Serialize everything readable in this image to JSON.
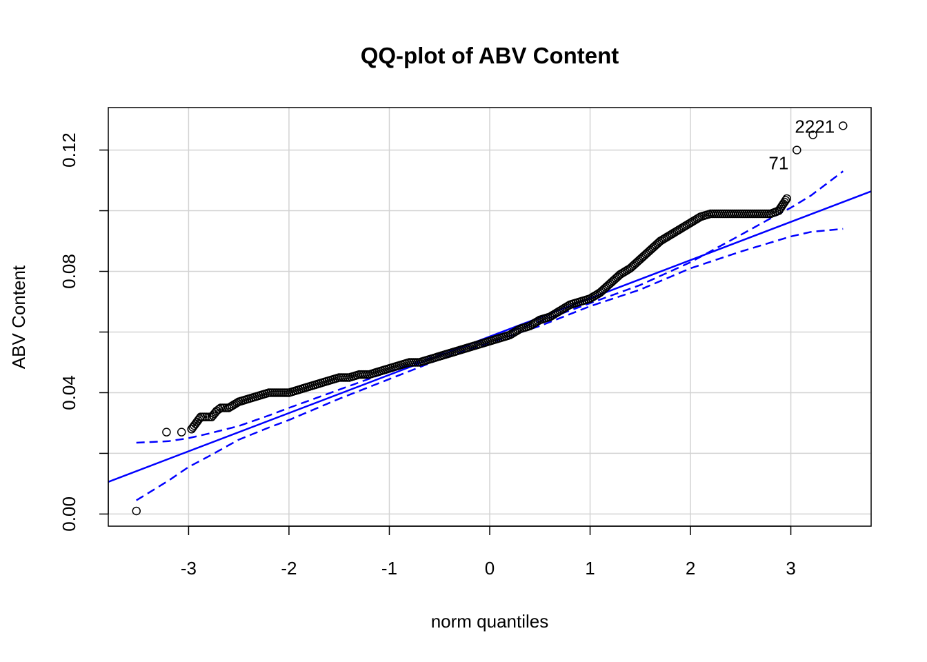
{
  "chart_data": {
    "type": "scatter",
    "title": "QQ-plot of ABV Content",
    "xlabel": "norm quantiles",
    "ylabel": "ABV Content",
    "xlim": [
      -3.8,
      3.8
    ],
    "ylim": [
      -0.004,
      0.134
    ],
    "x_ticks": [
      -3,
      -2,
      -1,
      0,
      1,
      2,
      3
    ],
    "x_tick_labels": [
      "-3",
      "-2",
      "-1",
      "0",
      "1",
      "2",
      "3"
    ],
    "y_ticks": [
      0.0,
      0.02,
      0.04,
      0.06,
      0.08,
      0.1,
      0.12
    ],
    "y_tick_labels": [
      "0.00",
      "",
      "0.04",
      "",
      "0.08",
      "",
      "0.12"
    ],
    "grid": true,
    "colors": {
      "points": "#000000",
      "reference": "#0000ff",
      "grid": "#d3d3d3"
    },
    "sample_quantile_curve": {
      "x": [
        -3.52,
        -3.22,
        -3.07,
        -2.97,
        -2.88,
        -2.82,
        -2.77,
        -2.72,
        -2.68,
        -2.6,
        -2.5,
        -2.4,
        -2.3,
        -2.2,
        -2.1,
        -2.0,
        -1.9,
        -1.8,
        -1.7,
        -1.6,
        -1.5,
        -1.4,
        -1.3,
        -1.2,
        -1.1,
        -1.0,
        -0.9,
        -0.8,
        -0.7,
        -0.6,
        -0.5,
        -0.4,
        -0.3,
        -0.2,
        -0.1,
        0.0,
        0.1,
        0.2,
        0.3,
        0.4,
        0.5,
        0.6,
        0.7,
        0.8,
        0.9,
        1.0,
        1.1,
        1.2,
        1.3,
        1.4,
        1.5,
        1.6,
        1.7,
        1.8,
        1.9,
        2.0,
        2.1,
        2.2,
        2.3,
        2.4,
        2.5,
        2.6,
        2.7,
        2.8,
        2.88,
        2.96,
        3.06,
        3.22,
        3.52
      ],
      "y": [
        0.001,
        0.027,
        0.027,
        0.028,
        0.032,
        0.032,
        0.032,
        0.034,
        0.035,
        0.035,
        0.037,
        0.038,
        0.039,
        0.04,
        0.04,
        0.04,
        0.041,
        0.042,
        0.043,
        0.044,
        0.045,
        0.045,
        0.046,
        0.046,
        0.047,
        0.048,
        0.049,
        0.05,
        0.05,
        0.051,
        0.052,
        0.053,
        0.054,
        0.055,
        0.056,
        0.057,
        0.058,
        0.059,
        0.061,
        0.062,
        0.064,
        0.065,
        0.067,
        0.069,
        0.07,
        0.071,
        0.073,
        0.076,
        0.079,
        0.081,
        0.084,
        0.087,
        0.09,
        0.092,
        0.094,
        0.096,
        0.098,
        0.099,
        0.099,
        0.099,
        0.099,
        0.099,
        0.099,
        0.099,
        0.1,
        0.104,
        0.12,
        0.125,
        0.128
      ]
    },
    "reference_line": {
      "x": [
        -3.8,
        3.8
      ],
      "y": [
        0.0106,
        0.1064
      ]
    },
    "confidence_band_upper": {
      "x": [
        -3.52,
        -3.2,
        -3.0,
        -2.8,
        -2.5,
        -2.2,
        -2.0,
        -1.5,
        -1.0,
        -0.5,
        0.0,
        0.5,
        1.0,
        1.5,
        2.0,
        2.5,
        2.8,
        3.0,
        3.2,
        3.52
      ],
      "y": [
        0.0235,
        0.024,
        0.025,
        0.0265,
        0.029,
        0.0325,
        0.035,
        0.041,
        0.047,
        0.0525,
        0.058,
        0.0635,
        0.0695,
        0.0755,
        0.083,
        0.092,
        0.0975,
        0.101,
        0.105,
        0.113
      ]
    },
    "confidence_band_lower": {
      "x": [
        -3.52,
        -3.2,
        -3.0,
        -2.8,
        -2.5,
        -2.2,
        -2.0,
        -1.5,
        -1.0,
        -0.5,
        0.0,
        0.5,
        1.0,
        1.5,
        2.0,
        2.5,
        2.8,
        3.0,
        3.2,
        3.52
      ],
      "y": [
        0.0045,
        0.011,
        0.0155,
        0.019,
        0.0245,
        0.0285,
        0.031,
        0.038,
        0.0445,
        0.051,
        0.0565,
        0.062,
        0.0685,
        0.074,
        0.081,
        0.0865,
        0.0895,
        0.0915,
        0.093,
        0.094
      ]
    },
    "annotations": [
      {
        "text": "2221",
        "x": 3.52,
        "y": 0.128
      },
      {
        "text": "71",
        "x": 3.06,
        "y": 0.12
      }
    ]
  }
}
